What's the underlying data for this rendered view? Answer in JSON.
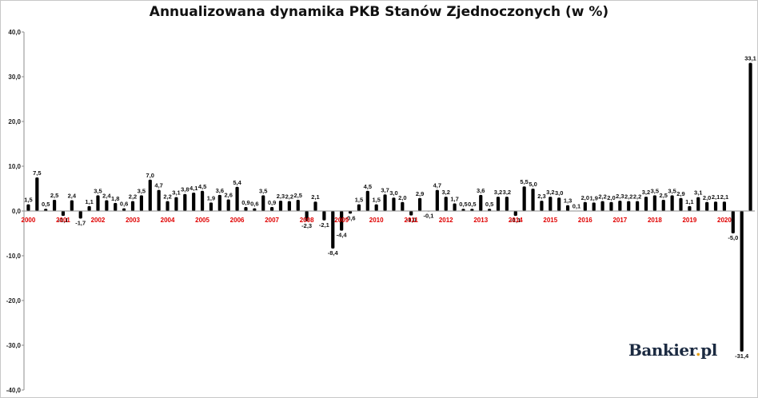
{
  "chart_data": {
    "type": "bar",
    "title": "Annualizowana dynamika PKB Stanów Zjednoczonych (w %)",
    "xlabel": "",
    "ylabel": "",
    "ylim": [
      -40,
      40
    ],
    "y_ticks": [
      "40,0",
      "30,0",
      "20,0",
      "10,0",
      "0,0",
      "-10,0",
      "-20,0",
      "-30,0",
      "-40,0"
    ],
    "grid": false,
    "legend": "none",
    "bar_color": "#000000",
    "year_label_color": "#e00000",
    "year_labels": [
      "2000",
      "2001",
      "2002",
      "2003",
      "2004",
      "2005",
      "2006",
      "2007",
      "2008",
      "2009",
      "2010",
      "2011",
      "2012",
      "2013",
      "2014",
      "2015",
      "2016",
      "2017",
      "2018",
      "2019",
      "2020"
    ],
    "quarters_per_year": 4,
    "values": [
      1.5,
      7.5,
      0.5,
      2.5,
      -1.1,
      2.4,
      -1.7,
      1.1,
      3.5,
      2.4,
      1.8,
      0.6,
      2.2,
      3.5,
      7.0,
      4.7,
      2.2,
      3.1,
      3.8,
      4.1,
      4.5,
      1.9,
      3.6,
      2.6,
      5.4,
      0.9,
      0.6,
      3.5,
      0.9,
      2.3,
      2.2,
      2.5,
      -2.3,
      2.1,
      -2.1,
      -8.4,
      -4.4,
      -0.6,
      1.5,
      4.5,
      1.5,
      3.7,
      3.0,
      2.0,
      -1.0,
      2.9,
      -0.1,
      4.7,
      3.2,
      1.7,
      0.5,
      0.5,
      3.6,
      0.5,
      3.2,
      3.2,
      -1.1,
      5.5,
      5.0,
      2.3,
      3.2,
      3.0,
      1.3,
      0.1,
      2.0,
      1.9,
      2.2,
      2.0,
      2.3,
      2.2,
      2.2,
      3.2,
      3.5,
      2.5,
      3.5,
      2.9,
      1.1,
      3.1,
      2.0,
      2.1,
      2.1,
      -5.0,
      -31.4,
      33.1
    ],
    "data_labels": [
      "1,5",
      "7,5",
      "0,5",
      "2,5",
      "-1,1",
      "2,4",
      "-1,7",
      "1,1",
      "3,5",
      "2,4",
      "1,8",
      "0,6",
      "2,2",
      "3,5",
      "7,0",
      "4,7",
      "2,2",
      "3,1",
      "3,8",
      "4,1",
      "4,5",
      "1,9",
      "3,6",
      "2,6",
      "5,4",
      "0,9",
      "0,6",
      "3,5",
      "0,9",
      "2,3",
      "2,2",
      "2,5",
      "-2,3",
      "2,1",
      "-2,1",
      "-8,4",
      "-4,4",
      "-0,6",
      "1,5",
      "4,5",
      "1,5",
      "3,7",
      "3,0",
      "2,0",
      "-1,0",
      "2,9",
      "-0,1",
      "4,7",
      "3,2",
      "1,7",
      "0,5",
      "0,5",
      "3,6",
      "0,5",
      "3,2",
      "3,2",
      "-1,1",
      "5,5",
      "5,0",
      "2,3",
      "3,2",
      "3,0",
      "1,3",
      "0,1",
      "2,0",
      "1,9",
      "2,2",
      "2,0",
      "2,3",
      "2,2",
      "2,2",
      "3,2",
      "3,5",
      "2,5",
      "3,5",
      "2,9",
      "1,1",
      "3,1",
      "2,0",
      "2,1",
      "2,1",
      "-5,0",
      "-31,4",
      "33,1"
    ]
  },
  "logo": {
    "text": "Bankier",
    "suffix": "pl",
    "accent_color": "#e8a21a"
  }
}
